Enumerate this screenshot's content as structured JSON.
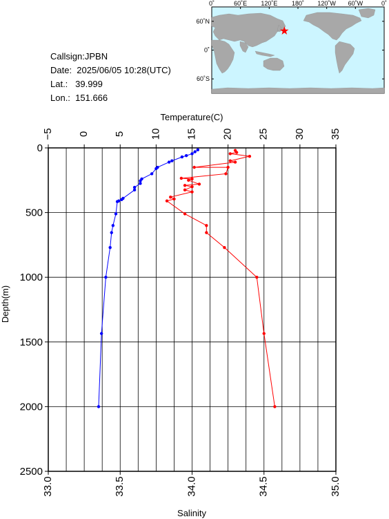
{
  "info": {
    "callsign": "Callsign:JPBN",
    "date": "Date:  2025/06/05 10:28(UTC)",
    "lat": "Lat.:   39.999",
    "lon": "Lon.:  151.666"
  },
  "map": {
    "lon_labels": [
      "0˚",
      "60˚E",
      "120˚E",
      "180˚",
      "120˚W",
      "60˚W",
      "0˚"
    ],
    "lat_labels": [
      "60˚N",
      "0˚",
      "60˚S"
    ],
    "ocean_color": "#ccf5ff",
    "land_color": "#a8a8a8",
    "marker": {
      "lat": 39.999,
      "lon": 151.666,
      "color": "#ff0000"
    }
  },
  "chart_data": {
    "type": "line",
    "xlabel_top": "Temperature(C)",
    "xlabel_bottom": "Salinity",
    "ylabel": "Depth(m)",
    "temperature_axis": {
      "range": [
        -5,
        35
      ],
      "ticks": [
        "−5",
        "0",
        "5",
        "10",
        "15",
        "20",
        "25",
        "30",
        "35"
      ]
    },
    "salinity_axis": {
      "range": [
        33.0,
        35.0
      ],
      "ticks": [
        "33.0",
        "33.5",
        "34.0",
        "34.5",
        "35.0"
      ]
    },
    "depth_axis": {
      "range": [
        0,
        2500
      ],
      "ticks": [
        "0",
        "500",
        "1000",
        "1500",
        "2000",
        "2500"
      ]
    },
    "grid": true,
    "series": [
      {
        "name": "",
        "quantity": "salinity",
        "color": "#0000ff",
        "points": [
          [
            34.04,
            15
          ],
          [
            34.02,
            30
          ],
          [
            34.0,
            45
          ],
          [
            33.96,
            60
          ],
          [
            33.93,
            70
          ],
          [
            33.86,
            100
          ],
          [
            33.84,
            110
          ],
          [
            33.76,
            150
          ],
          [
            33.75,
            160
          ],
          [
            33.72,
            200
          ],
          [
            33.65,
            240
          ],
          [
            33.64,
            255
          ],
          [
            33.64,
            275
          ],
          [
            33.6,
            305
          ],
          [
            33.6,
            325
          ],
          [
            33.52,
            390
          ],
          [
            33.51,
            400
          ],
          [
            33.49,
            410
          ],
          [
            33.48,
            415
          ],
          [
            33.47,
            510
          ],
          [
            33.45,
            600
          ],
          [
            33.44,
            655
          ],
          [
            33.43,
            770
          ],
          [
            33.4,
            1000
          ],
          [
            33.37,
            1435
          ],
          [
            33.35,
            2000
          ]
        ]
      },
      {
        "name": "",
        "quantity": "temperature",
        "color": "#ff0000",
        "points": [
          [
            21.0,
            20
          ],
          [
            21.2,
            35
          ],
          [
            20.3,
            45
          ],
          [
            23.0,
            65
          ],
          [
            20.3,
            100
          ],
          [
            21.0,
            110
          ],
          [
            15.3,
            150
          ],
          [
            20.0,
            150
          ],
          [
            19.7,
            200
          ],
          [
            13.5,
            235
          ],
          [
            15.0,
            240
          ],
          [
            14.5,
            250
          ],
          [
            16.0,
            280
          ],
          [
            14.0,
            290
          ],
          [
            15.0,
            300
          ],
          [
            14.0,
            325
          ],
          [
            15.0,
            340
          ],
          [
            12.0,
            380
          ],
          [
            12.5,
            395
          ],
          [
            11.5,
            410
          ],
          [
            14.0,
            510
          ],
          [
            17.0,
            600
          ],
          [
            17.0,
            655
          ],
          [
            19.5,
            770
          ],
          [
            24.0,
            1000
          ],
          [
            25.0,
            1435
          ],
          [
            26.5,
            2000
          ]
        ]
      }
    ]
  }
}
